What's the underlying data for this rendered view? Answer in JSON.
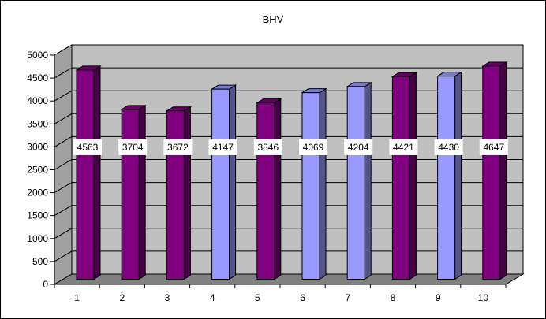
{
  "chart_data": {
    "type": "bar",
    "title": "BHV",
    "xlabel": "",
    "ylabel": "",
    "categories": [
      "1",
      "2",
      "3",
      "4",
      "5",
      "6",
      "7",
      "8",
      "9",
      "10"
    ],
    "values": [
      4563,
      3704,
      3672,
      4147,
      3846,
      4069,
      4204,
      4421,
      4430,
      4647
    ],
    "data_labels": [
      "4563",
      "3704",
      "3672",
      "4147",
      "3846",
      "4069",
      "4204",
      "4421",
      "4430",
      "4647"
    ],
    "bar_colors": [
      "#800080",
      "#800080",
      "#800080",
      "#9999ff",
      "#800080",
      "#9999ff",
      "#9999ff",
      "#800080",
      "#9999ff",
      "#800080"
    ],
    "ylim": [
      0,
      5000
    ],
    "y_ticks": [
      "0",
      "500",
      "1000",
      "1500",
      "2000",
      "2500",
      "3000",
      "3500",
      "4000",
      "4500",
      "5000"
    ],
    "grid": true,
    "legend": "none",
    "style": "3d-column",
    "colors": {
      "purple": "#800080",
      "lavender": "#9999ff",
      "wall": "#c0c0c0",
      "floor": "#808080",
      "background": "#ffffff"
    }
  }
}
